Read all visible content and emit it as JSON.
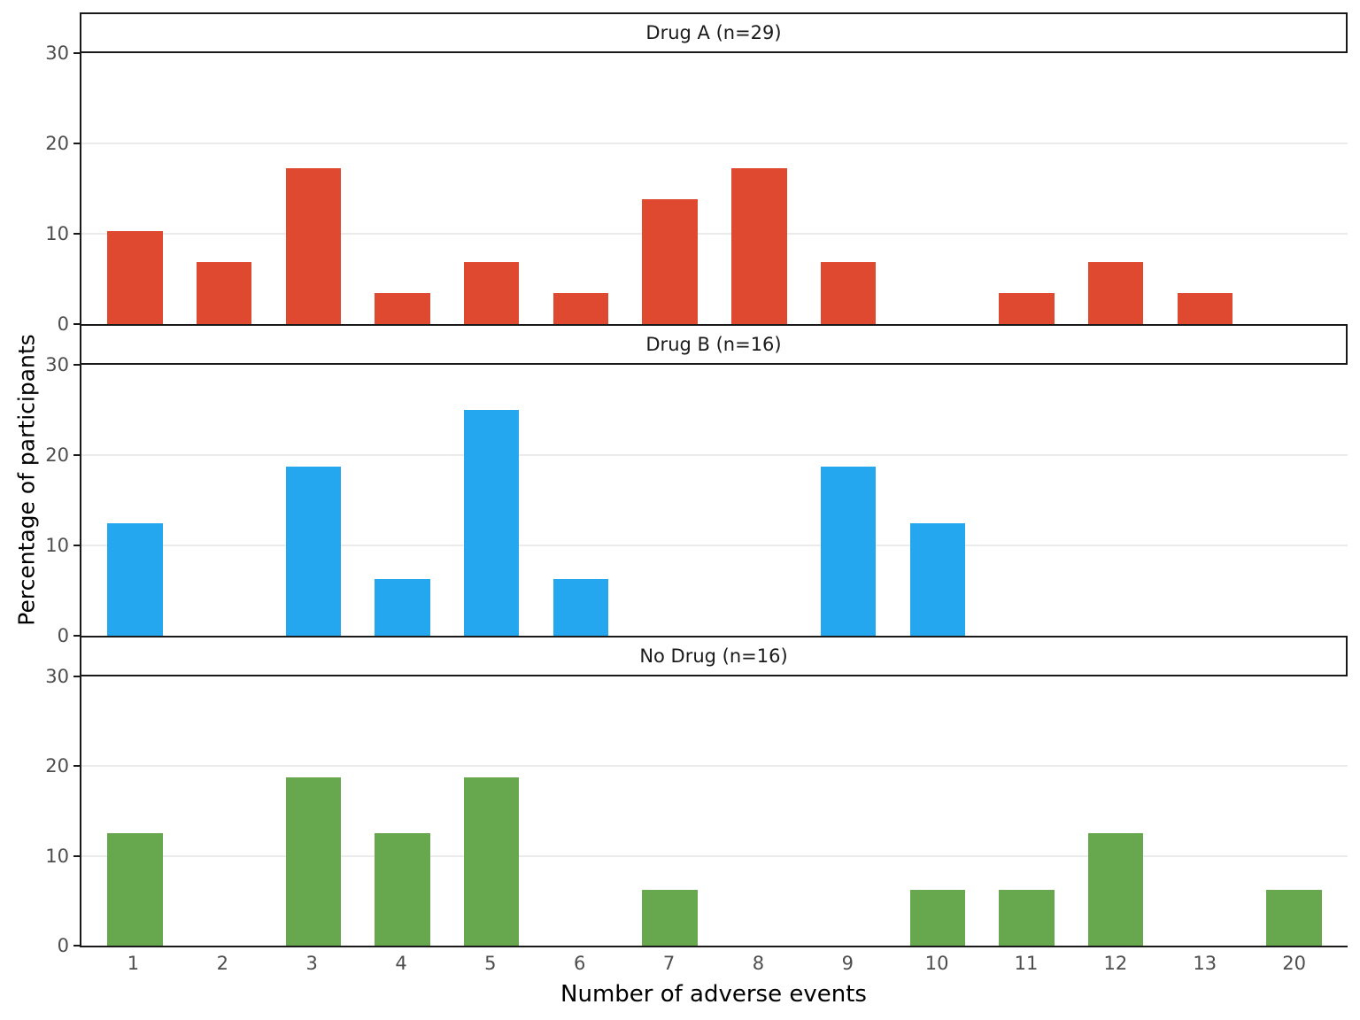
{
  "chart_data": {
    "type": "bar",
    "title": "",
    "xlabel": "Number of adverse events",
    "ylabel": "Percentage of participants",
    "categories": [
      "1",
      "2",
      "3",
      "4",
      "5",
      "6",
      "7",
      "8",
      "9",
      "10",
      "11",
      "12",
      "13",
      "20"
    ],
    "ylim": [
      0,
      30
    ],
    "yticks": [
      0,
      10,
      20,
      30
    ],
    "grid": "horizontal gridlines at y=10 and y=20",
    "legend_position": "none (facet strip labels above each panel)",
    "layout": "three vertically stacked facet panels sharing the x axis",
    "series": [
      {
        "name": "Drug A (n=29)",
        "color": "#DE4930",
        "values": [
          10.34,
          6.9,
          17.24,
          3.45,
          6.9,
          3.45,
          13.79,
          17.24,
          6.9,
          0,
          3.45,
          6.9,
          3.45,
          0
        ]
      },
      {
        "name": "Drug B (n=16)",
        "color": "#24A7EE",
        "values": [
          12.5,
          0,
          18.75,
          6.25,
          25,
          6.25,
          0,
          0,
          18.75,
          12.5,
          0,
          0,
          0,
          0
        ]
      },
      {
        "name": "No Drug (n=16)",
        "color": "#67A84F",
        "values": [
          12.5,
          0,
          18.75,
          12.5,
          18.75,
          0,
          6.25,
          0,
          0,
          6.25,
          6.25,
          12.5,
          0,
          6.25
        ]
      }
    ]
  },
  "colors": {
    "bar_red": "#DE4930",
    "bar_blue": "#24A7EE",
    "bar_green": "#67A84F",
    "gridline": "#EBEBEB",
    "axis_line": "#1A1A1A",
    "tick_label": "#4D4D4D",
    "background": "#FFFFFF"
  }
}
